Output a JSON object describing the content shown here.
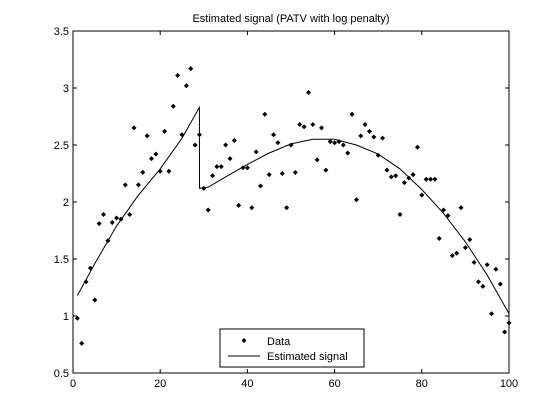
{
  "chart_data": {
    "type": "scatter",
    "title": "Estimated signal (PATV with log penalty)",
    "xlabel": "",
    "ylabel": "",
    "xlim": [
      0,
      100
    ],
    "ylim": [
      0.5,
      3.5
    ],
    "xticks": [
      "0",
      "20",
      "40",
      "60",
      "80",
      "100"
    ],
    "yticks": [
      "0.5",
      "1",
      "1.5",
      "2",
      "2.5",
      "3",
      "3.5"
    ],
    "xtick_values": [
      0,
      20,
      40,
      60,
      80,
      100
    ],
    "ytick_values": [
      0.5,
      1,
      1.5,
      2,
      2.5,
      3,
      3.5
    ],
    "grid": false,
    "legend": {
      "position": "bottom-center",
      "entries": [
        "Data",
        "Estimated signal"
      ]
    },
    "series": [
      {
        "name": "Data",
        "type": "scatter",
        "marker": "diamond",
        "color": "#000000",
        "x": [
          1,
          2,
          3,
          4,
          5,
          6,
          7,
          8,
          9,
          10,
          11,
          12,
          13,
          14,
          15,
          16,
          17,
          18,
          19,
          20,
          21,
          22,
          23,
          24,
          25,
          26,
          27,
          28,
          29,
          30,
          31,
          32,
          33,
          34,
          35,
          36,
          37,
          38,
          39,
          40,
          41,
          42,
          43,
          44,
          45,
          46,
          47,
          48,
          49,
          50,
          51,
          52,
          53,
          54,
          55,
          56,
          57,
          58,
          59,
          60,
          61,
          62,
          63,
          64,
          65,
          66,
          67,
          68,
          69,
          70,
          71,
          72,
          73,
          74,
          75,
          76,
          77,
          78,
          79,
          80,
          81,
          82,
          83,
          84,
          85,
          86,
          87,
          88,
          89,
          90,
          91,
          92,
          93,
          94,
          95,
          96,
          97,
          98,
          99,
          100
        ],
        "y": [
          0.98,
          0.76,
          1.3,
          1.42,
          1.14,
          1.81,
          1.89,
          1.66,
          1.82,
          1.86,
          1.85,
          2.15,
          1.89,
          2.65,
          2.15,
          2.26,
          2.58,
          2.38,
          2.42,
          2.27,
          2.62,
          2.27,
          2.84,
          3.11,
          2.59,
          3.02,
          3.17,
          2.5,
          2.59,
          2.12,
          1.93,
          2.23,
          2.31,
          2.31,
          2.5,
          2.38,
          2.54,
          1.97,
          2.3,
          2.3,
          1.95,
          2.44,
          2.14,
          2.77,
          2.24,
          2.59,
          2.52,
          2.25,
          1.95,
          2.5,
          2.26,
          2.68,
          2.66,
          2.96,
          2.68,
          2.37,
          2.65,
          2.28,
          2.53,
          2.52,
          2.53,
          2.5,
          2.43,
          2.77,
          2.02,
          2.58,
          2.68,
          2.62,
          2.57,
          2.41,
          2.56,
          2.28,
          2.22,
          2.23,
          1.89,
          2.17,
          2.21,
          2.24,
          2.48,
          2.06,
          2.2,
          2.2,
          2.2,
          1.68,
          1.93,
          1.88,
          1.53,
          1.55,
          1.95,
          1.6,
          1.67,
          1.47,
          1.3,
          1.26,
          1.45,
          1.02,
          1.41,
          1.28,
          0.86,
          0.94
        ]
      },
      {
        "name": "Estimated signal",
        "type": "line",
        "color": "#000000",
        "x": [
          1,
          5,
          10,
          15,
          20,
          25,
          29,
          29.01,
          31,
          35,
          40,
          45,
          50,
          55,
          60,
          65,
          70,
          75,
          80,
          85,
          90,
          95,
          100
        ],
        "y": [
          1.18,
          1.46,
          1.79,
          2.06,
          2.29,
          2.56,
          2.83,
          2.12,
          2.13,
          2.22,
          2.33,
          2.43,
          2.51,
          2.55,
          2.55,
          2.5,
          2.42,
          2.29,
          2.11,
          1.9,
          1.65,
          1.36,
          1.02
        ]
      }
    ]
  }
}
